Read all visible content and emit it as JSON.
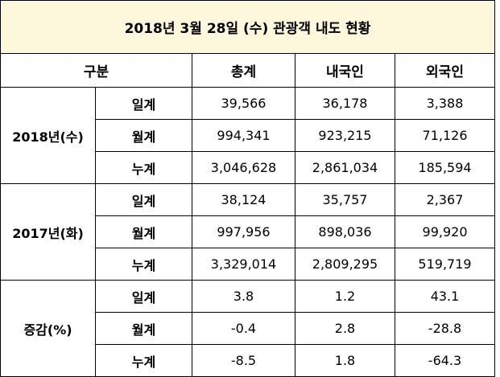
{
  "table": {
    "title": "2018년 3월 28일 (수) 관광객 내도 현황",
    "header": [
      "구분",
      "총계",
      "내국인",
      "외국인"
    ],
    "groups": [
      {
        "label": "2018년(수)",
        "rows": [
          {
            "label": "일계",
            "values": [
              "39,566",
              "36,178",
              "3,388"
            ]
          },
          {
            "label": "월계",
            "values": [
              "994,341",
              "923,215",
              "71,126"
            ]
          },
          {
            "label": "누계",
            "values": [
              "3,046,628",
              "2,861,034",
              "185,594"
            ]
          }
        ]
      },
      {
        "label": "2017년(화)",
        "rows": [
          {
            "label": "일계",
            "values": [
              "38,124",
              "35,757",
              "2,367"
            ]
          },
          {
            "label": "월계",
            "values": [
              "997,956",
              "898,036",
              "99,920"
            ]
          },
          {
            "label": "누계",
            "values": [
              "3,329,014",
              "2,809,295",
              "519,719"
            ]
          }
        ]
      },
      {
        "label": "증감(%)",
        "rows": [
          {
            "label": "일계",
            "values": [
              "3.8",
              "1.2",
              "43.1"
            ]
          },
          {
            "label": "월계",
            "values": [
              "-0.4",
              "2.8",
              "-28.8"
            ]
          },
          {
            "label": "누계",
            "values": [
              "-8.5",
              "1.8",
              "-64.3"
            ]
          }
        ]
      }
    ]
  }
}
